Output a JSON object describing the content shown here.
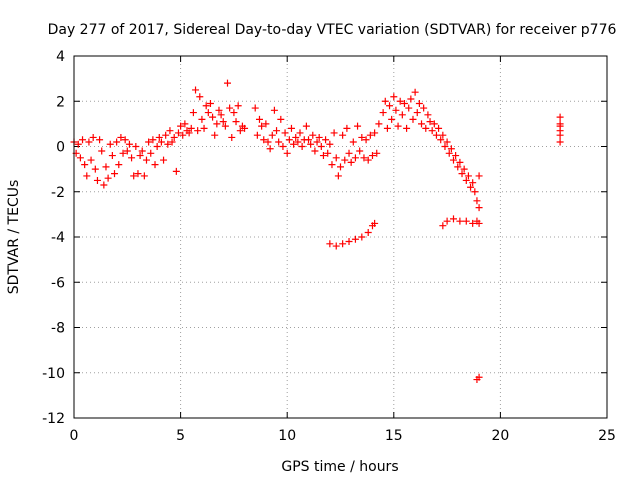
{
  "chart_data": {
    "type": "scatter",
    "title": "Day 277 of 2017, Sidereal Day-to-day VTEC variation (SDTVAR) for receiver p776",
    "xlabel": "GPS time / hours",
    "ylabel": "SDTVAR / TECUs",
    "xlim": [
      0,
      25
    ],
    "ylim": [
      -12,
      4
    ],
    "xticks": [
      0,
      5,
      10,
      15,
      20,
      25
    ],
    "yticks": [
      -12,
      -10,
      -8,
      -6,
      -4,
      -2,
      0,
      2,
      4
    ],
    "grid": true,
    "marker": "+",
    "color": "#ff0000",
    "series": [
      {
        "name": "SDTVAR",
        "points": [
          [
            0.0,
            0.2
          ],
          [
            0.1,
            -0.3
          ],
          [
            0.2,
            0.1
          ],
          [
            0.3,
            -0.5
          ],
          [
            0.4,
            0.3
          ],
          [
            0.5,
            -0.8
          ],
          [
            0.6,
            -1.3
          ],
          [
            0.7,
            0.2
          ],
          [
            0.8,
            -0.6
          ],
          [
            0.9,
            0.4
          ],
          [
            1.0,
            -1.0
          ],
          [
            1.1,
            -1.5
          ],
          [
            1.2,
            0.3
          ],
          [
            1.3,
            -0.2
          ],
          [
            1.4,
            -1.7
          ],
          [
            1.5,
            -0.9
          ],
          [
            1.6,
            -1.4
          ],
          [
            1.7,
            0.1
          ],
          [
            1.8,
            -0.4
          ],
          [
            1.9,
            -1.2
          ],
          [
            2.0,
            0.2
          ],
          [
            2.1,
            -0.8
          ],
          [
            2.2,
            0.4
          ],
          [
            2.3,
            -0.3
          ],
          [
            2.4,
            0.3
          ],
          [
            2.5,
            -0.2
          ],
          [
            2.6,
            0.1
          ],
          [
            2.7,
            -0.5
          ],
          [
            2.8,
            -1.3
          ],
          [
            2.9,
            0.0
          ],
          [
            3.0,
            -1.2
          ],
          [
            3.1,
            -0.4
          ],
          [
            3.2,
            -0.2
          ],
          [
            3.3,
            -1.3
          ],
          [
            3.4,
            -0.6
          ],
          [
            3.5,
            0.2
          ],
          [
            3.6,
            -0.3
          ],
          [
            3.7,
            0.3
          ],
          [
            3.8,
            -0.8
          ],
          [
            3.9,
            0.0
          ],
          [
            4.0,
            0.4
          ],
          [
            4.1,
            0.2
          ],
          [
            4.2,
            -0.6
          ],
          [
            4.3,
            0.5
          ],
          [
            4.4,
            0.1
          ],
          [
            4.5,
            0.7
          ],
          [
            4.6,
            0.2
          ],
          [
            4.7,
            0.4
          ],
          [
            4.8,
            -1.1
          ],
          [
            4.9,
            0.6
          ],
          [
            5.0,
            0.9
          ],
          [
            5.1,
            0.5
          ],
          [
            5.2,
            1.0
          ],
          [
            5.3,
            0.7
          ],
          [
            5.4,
            0.6
          ],
          [
            5.5,
            0.8
          ],
          [
            5.6,
            1.5
          ],
          [
            5.7,
            2.5
          ],
          [
            5.8,
            0.7
          ],
          [
            5.9,
            2.2
          ],
          [
            6.0,
            1.2
          ],
          [
            6.1,
            0.8
          ],
          [
            6.2,
            1.8
          ],
          [
            6.3,
            1.5
          ],
          [
            6.4,
            1.9
          ],
          [
            6.5,
            1.3
          ],
          [
            6.6,
            0.5
          ],
          [
            6.7,
            1.0
          ],
          [
            6.8,
            1.6
          ],
          [
            6.9,
            1.4
          ],
          [
            7.0,
            1.1
          ],
          [
            7.1,
            0.9
          ],
          [
            7.2,
            2.8
          ],
          [
            7.3,
            1.7
          ],
          [
            7.4,
            0.4
          ],
          [
            7.5,
            1.5
          ],
          [
            7.6,
            1.1
          ],
          [
            7.7,
            1.8
          ],
          [
            7.8,
            0.7
          ],
          [
            7.9,
            0.9
          ],
          [
            8.0,
            0.8
          ],
          [
            8.5,
            1.7
          ],
          [
            8.6,
            0.5
          ],
          [
            8.7,
            1.2
          ],
          [
            8.8,
            0.9
          ],
          [
            8.9,
            0.3
          ],
          [
            9.0,
            1.0
          ],
          [
            9.1,
            0.2
          ],
          [
            9.2,
            -0.1
          ],
          [
            9.3,
            0.5
          ],
          [
            9.4,
            1.6
          ],
          [
            9.5,
            0.7
          ],
          [
            9.6,
            0.2
          ],
          [
            9.7,
            1.2
          ],
          [
            9.8,
            0.0
          ],
          [
            9.9,
            0.6
          ],
          [
            10.0,
            -0.3
          ],
          [
            10.1,
            0.3
          ],
          [
            10.2,
            0.8
          ],
          [
            10.3,
            0.1
          ],
          [
            10.4,
            0.4
          ],
          [
            10.5,
            0.2
          ],
          [
            10.6,
            0.6
          ],
          [
            10.7,
            0.0
          ],
          [
            10.8,
            0.3
          ],
          [
            10.9,
            0.9
          ],
          [
            11.0,
            0.3
          ],
          [
            11.1,
            0.1
          ],
          [
            11.2,
            0.5
          ],
          [
            11.3,
            -0.2
          ],
          [
            11.4,
            0.2
          ],
          [
            11.5,
            0.4
          ],
          [
            11.6,
            0.0
          ],
          [
            11.7,
            -0.4
          ],
          [
            11.8,
            0.3
          ],
          [
            11.9,
            -0.3
          ],
          [
            12.0,
            0.1
          ],
          [
            12.1,
            -0.8
          ],
          [
            12.2,
            0.6
          ],
          [
            12.3,
            -0.5
          ],
          [
            12.4,
            -1.3
          ],
          [
            12.5,
            -0.9
          ],
          [
            12.6,
            0.5
          ],
          [
            12.7,
            -0.6
          ],
          [
            12.8,
            0.8
          ],
          [
            12.9,
            -0.3
          ],
          [
            13.0,
            -0.7
          ],
          [
            13.1,
            0.2
          ],
          [
            13.2,
            -0.5
          ],
          [
            13.3,
            0.9
          ],
          [
            13.4,
            -0.2
          ],
          [
            13.5,
            0.4
          ],
          [
            13.6,
            -0.5
          ],
          [
            13.7,
            0.3
          ],
          [
            13.8,
            -0.6
          ],
          [
            13.9,
            0.5
          ],
          [
            14.0,
            -0.4
          ],
          [
            14.1,
            0.6
          ],
          [
            14.2,
            -0.3
          ],
          [
            12.0,
            -4.3
          ],
          [
            12.3,
            -4.4
          ],
          [
            12.6,
            -4.3
          ],
          [
            12.9,
            -4.2
          ],
          [
            13.2,
            -4.1
          ],
          [
            13.5,
            -4.0
          ],
          [
            13.8,
            -3.8
          ],
          [
            14.0,
            -3.5
          ],
          [
            14.1,
            -3.4
          ],
          [
            14.3,
            1.0
          ],
          [
            14.5,
            1.5
          ],
          [
            14.6,
            2.0
          ],
          [
            14.7,
            0.8
          ],
          [
            14.8,
            1.8
          ],
          [
            14.9,
            1.2
          ],
          [
            15.0,
            2.2
          ],
          [
            15.1,
            1.6
          ],
          [
            15.2,
            0.9
          ],
          [
            15.3,
            2.0
          ],
          [
            15.4,
            1.4
          ],
          [
            15.5,
            1.9
          ],
          [
            15.6,
            0.8
          ],
          [
            15.7,
            1.7
          ],
          [
            15.8,
            2.1
          ],
          [
            15.9,
            1.2
          ],
          [
            16.0,
            2.4
          ],
          [
            16.1,
            1.5
          ],
          [
            16.2,
            1.9
          ],
          [
            16.3,
            1.0
          ],
          [
            16.4,
            1.7
          ],
          [
            16.5,
            0.8
          ],
          [
            16.6,
            1.4
          ],
          [
            16.7,
            1.1
          ],
          [
            16.8,
            0.7
          ],
          [
            16.9,
            1.0
          ],
          [
            17.0,
            0.5
          ],
          [
            17.1,
            0.8
          ],
          [
            17.2,
            0.3
          ],
          [
            17.3,
            0.5
          ],
          [
            17.4,
            0.0
          ],
          [
            17.5,
            0.2
          ],
          [
            17.6,
            -0.3
          ],
          [
            17.7,
            -0.1
          ],
          [
            17.8,
            -0.6
          ],
          [
            17.9,
            -0.4
          ],
          [
            18.0,
            -0.9
          ],
          [
            18.1,
            -0.7
          ],
          [
            18.2,
            -1.2
          ],
          [
            18.3,
            -1.0
          ],
          [
            18.4,
            -1.5
          ],
          [
            18.5,
            -1.3
          ],
          [
            18.6,
            -1.8
          ],
          [
            18.7,
            -1.6
          ],
          [
            18.8,
            -2.0
          ],
          [
            18.9,
            -2.4
          ],
          [
            19.0,
            -1.3
          ],
          [
            19.0,
            -2.7
          ],
          [
            17.3,
            -3.5
          ],
          [
            17.5,
            -3.3
          ],
          [
            17.8,
            -3.2
          ],
          [
            18.1,
            -3.3
          ],
          [
            18.4,
            -3.3
          ],
          [
            18.7,
            -3.4
          ],
          [
            18.9,
            -3.3
          ],
          [
            19.0,
            -3.4
          ],
          [
            18.9,
            -10.3
          ],
          [
            19.0,
            -10.2
          ],
          [
            22.8,
            1.3
          ],
          [
            22.8,
            0.9
          ],
          [
            22.8,
            0.5
          ],
          [
            22.8,
            0.2
          ],
          [
            22.8,
            1.0
          ],
          [
            22.8,
            0.7
          ]
        ]
      }
    ]
  }
}
